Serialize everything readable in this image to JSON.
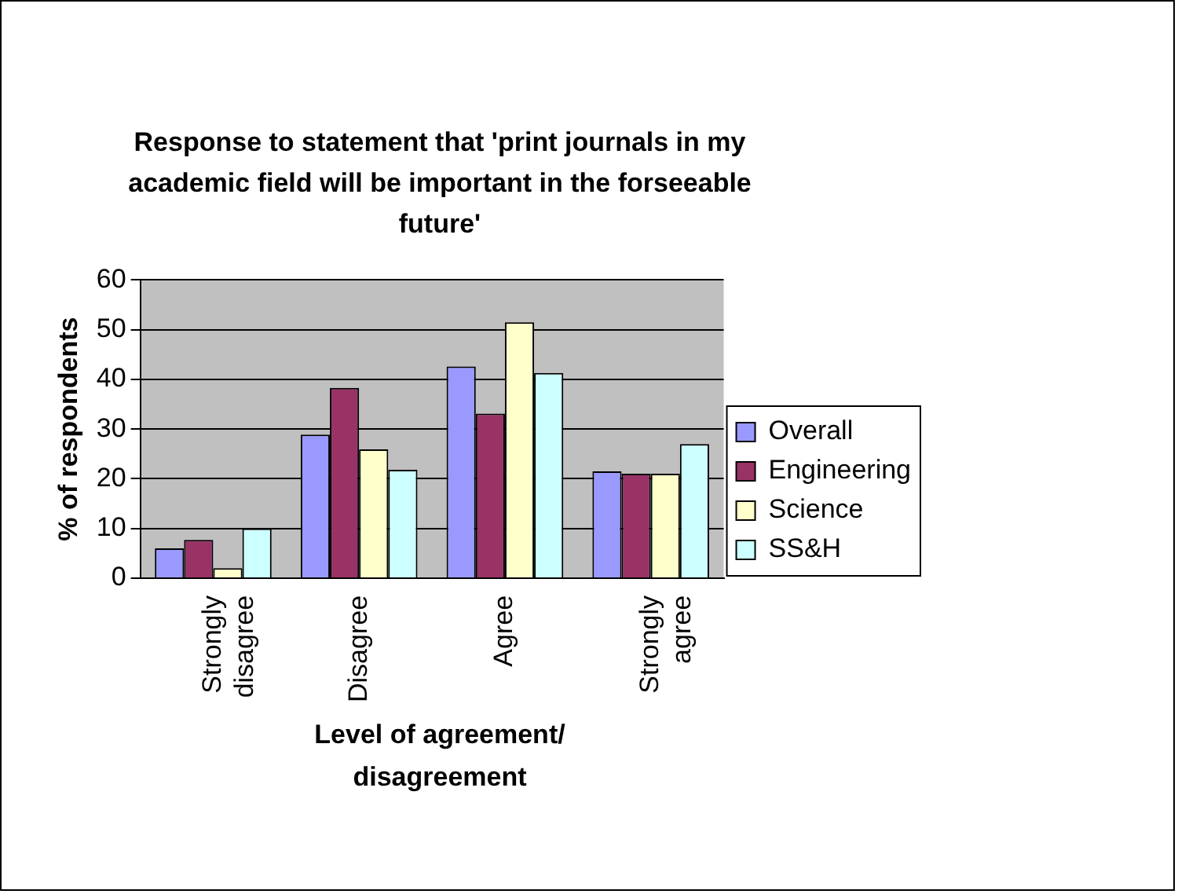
{
  "chart_data": {
    "type": "bar",
    "title": "Response to statement that 'print journals in my academic field will be important in the forseeable future'",
    "xlabel": "Level of agreement/ disagreement",
    "ylabel": "% of respondents",
    "categories": [
      "Strongly disagree",
      "Disagree",
      "Agree",
      "Strongly agree"
    ],
    "series": [
      {
        "name": "Overall",
        "color": "#9999ff",
        "values": [
          6,
          28.9,
          42.6,
          21.5
        ]
      },
      {
        "name": "Engineering",
        "color": "#993366",
        "values": [
          7.7,
          38.3,
          33.1,
          21
        ]
      },
      {
        "name": "Science",
        "color": "#ffffcc",
        "values": [
          2,
          25.9,
          51.5,
          21
        ]
      },
      {
        "name": "SS&H",
        "color": "#ccffff",
        "values": [
          10,
          21.8,
          41.3,
          27
        ]
      }
    ],
    "ylim": [
      0,
      60
    ],
    "yticks": [
      0,
      10,
      20,
      30,
      40,
      50,
      60
    ],
    "grid": "y",
    "legend": "right"
  }
}
